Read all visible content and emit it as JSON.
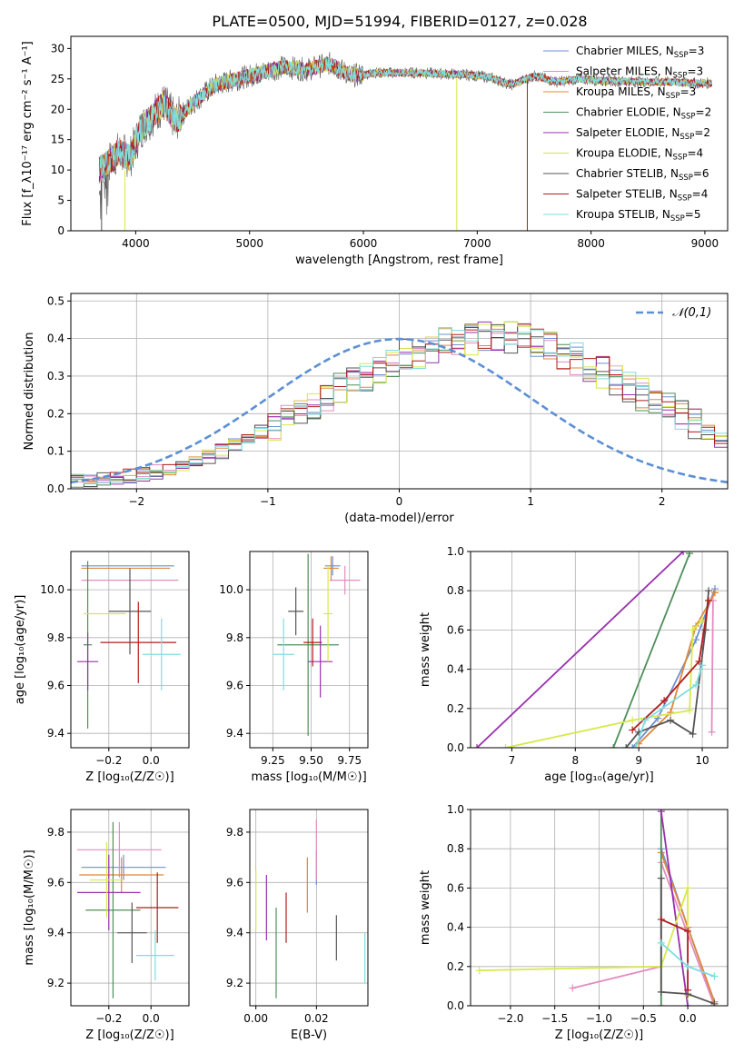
{
  "figure": {
    "title": "PLATE=0500, MJD=51994, FIBERID=0127, z=0.028"
  },
  "legend_models": [
    {
      "label": "Chabrier MILES, N",
      "sub": "SSP",
      "suffix": "=3",
      "color": "#6f8fd0"
    },
    {
      "label": "Salpeter MILES, N",
      "sub": "SSP",
      "suffix": "=3",
      "color": "#e58bc0"
    },
    {
      "label": "Kroupa MILES, N",
      "sub": "SSP",
      "suffix": "=3",
      "color": "#e0883a"
    },
    {
      "label": "Chabrier ELODIE, N",
      "sub": "SSP",
      "suffix": "=2",
      "color": "#4f8f5a"
    },
    {
      "label": "Salpeter ELODIE, N",
      "sub": "SSP",
      "suffix": "=2",
      "color": "#9a2fae"
    },
    {
      "label": "Kroupa ELODIE, N",
      "sub": "SSP",
      "suffix": "=4",
      "color": "#d8e84a"
    },
    {
      "label": "Chabrier STELIB, N",
      "sub": "SSP",
      "suffix": "=6",
      "color": "#555555"
    },
    {
      "label": "Salpeter STELIB, N",
      "sub": "SSP",
      "suffix": "=4",
      "color": "#b01d1d"
    },
    {
      "label": "Kroupa STELIB, N",
      "sub": "SSP",
      "suffix": "=5",
      "color": "#7fdde0"
    }
  ],
  "chart_data": [
    {
      "id": "spectrum",
      "type": "line",
      "xlabel": "wavelength [Angstrom, rest frame]",
      "ylabel": "Flux [f_λ10⁻¹⁷ erg cm⁻² s⁻¹ A⁻¹]",
      "xlim": [
        3430,
        9200
      ],
      "ylim": [
        0,
        32
      ],
      "xticks": [
        4000,
        5000,
        6000,
        7000,
        8000,
        9000
      ],
      "yticks": [
        0,
        5,
        10,
        15,
        20,
        25,
        30
      ],
      "continuum": {
        "x": [
          3680,
          3750,
          3850,
          3950,
          4050,
          4150,
          4250,
          4350,
          4500,
          4700,
          4900,
          5100,
          5300,
          5500,
          5700,
          5900,
          6100,
          6300,
          6500,
          6700,
          6900,
          7100,
          7300,
          7500,
          7700,
          7900,
          8100,
          8300,
          8500,
          8700,
          8900,
          9050
        ],
        "y": [
          10,
          11,
          13,
          12,
          17,
          19,
          21,
          18,
          21,
          24,
          25,
          26,
          27,
          26.5,
          27.5,
          25.5,
          26,
          26,
          26,
          25.8,
          25.7,
          25.3,
          24,
          25.5,
          24.5,
          25,
          24.7,
          24.6,
          24.5,
          24.5,
          24.3,
          24.3
        ]
      },
      "series": [
        {
          "name": "Chabrier MILES, NSSP=3"
        },
        {
          "name": "Salpeter MILES, NSSP=3"
        },
        {
          "name": "Kroupa MILES, NSSP=3"
        },
        {
          "name": "Chabrier ELODIE, NSSP=2"
        },
        {
          "name": "Salpeter ELODIE, NSSP=2"
        },
        {
          "name": "Kroupa ELODIE, NSSP=4"
        },
        {
          "name": "Chabrier STELIB, NSSP=6"
        },
        {
          "name": "Salpeter STELIB, NSSP=4"
        },
        {
          "name": "Kroupa STELIB, NSSP=5"
        }
      ]
    },
    {
      "id": "residuals",
      "type": "histogram",
      "xlabel": "(data-model)/error",
      "ylabel": "Normed distribution",
      "xlim": [
        -2.5,
        2.5
      ],
      "ylim": [
        0,
        0.52
      ],
      "xticks": [
        -2,
        -1,
        0,
        1,
        2
      ],
      "yticks": [
        0.0,
        0.1,
        0.2,
        0.3,
        0.4,
        0.5
      ],
      "grid": true,
      "bin_width": 0.1,
      "bin_start": -2.5,
      "reference": {
        "name": "𝒩(0,1)",
        "mu": 0,
        "sigma": 1
      },
      "envelope": [
        0.02,
        0.02,
        0.025,
        0.03,
        0.035,
        0.04,
        0.045,
        0.05,
        0.06,
        0.07,
        0.085,
        0.1,
        0.115,
        0.13,
        0.15,
        0.17,
        0.19,
        0.21,
        0.225,
        0.245,
        0.265,
        0.285,
        0.305,
        0.32,
        0.34,
        0.355,
        0.365,
        0.38,
        0.39,
        0.395,
        0.4,
        0.41,
        0.41,
        0.405,
        0.4,
        0.39,
        0.375,
        0.36,
        0.345,
        0.33,
        0.31,
        0.29,
        0.27,
        0.25,
        0.23,
        0.21,
        0.19,
        0.17,
        0.15,
        0.13,
        0.11,
        0.095,
        0.08,
        0.07,
        0.06,
        0.05,
        0.045,
        0.04,
        0.035,
        0.03,
        0.025,
        0.022,
        0.02,
        0.02,
        0.02,
        0.02,
        0.02,
        0.02,
        0.02,
        0.02
      ]
    },
    {
      "id": "age_vs_Z",
      "type": "errorbar",
      "xlabel": "Z [log₁₀(Z/Z☉)]",
      "ylabel": "age  [log₁₀(age/yr)]",
      "xlim": [
        -0.38,
        0.18
      ],
      "ylim": [
        9.34,
        10.16
      ],
      "xticks": [
        -0.2,
        0.0
      ],
      "yticks": [
        9.4,
        9.6,
        9.8,
        10.0
      ],
      "points": [
        {
          "x": -0.11,
          "xerr": 0.22,
          "y": 10.1,
          "yerr": 0.0
        },
        {
          "x": -0.1,
          "xerr": 0.23,
          "y": 10.04,
          "yerr": 0.0
        },
        {
          "x": -0.12,
          "xerr": 0.21,
          "y": 10.09,
          "yerr": 0.0
        },
        {
          "x": -0.3,
          "xerr": 0.02,
          "y": 9.77,
          "yerr": 0.35
        },
        {
          "x": -0.3,
          "xerr": 0.05,
          "y": 9.7,
          "yerr": 0.12
        },
        {
          "x": -0.22,
          "xerr": 0.1,
          "y": 9.9,
          "yerr": 0.0
        },
        {
          "x": -0.1,
          "xerr": 0.1,
          "y": 9.91,
          "yerr": 0.18
        },
        {
          "x": -0.06,
          "xerr": 0.18,
          "y": 9.78,
          "yerr": 0.17
        },
        {
          "x": 0.05,
          "xerr": 0.09,
          "y": 9.73,
          "yerr": 0.15
        }
      ]
    },
    {
      "id": "age_vs_mass",
      "type": "errorbar",
      "xlabel": "mass [log₁₀(M/M☉)]",
      "ylabel": "",
      "xlim": [
        9.1,
        9.87
      ],
      "ylim": [
        9.34,
        10.16
      ],
      "xticks": [
        9.25,
        9.5,
        9.75
      ],
      "yticks": [
        9.4,
        9.6,
        9.8,
        10.0
      ],
      "points": [
        {
          "x": 9.64,
          "xerr": 0.05,
          "y": 10.1,
          "yerr": 0.04
        },
        {
          "x": 9.72,
          "xerr": 0.1,
          "y": 10.04,
          "yerr": 0.06
        },
        {
          "x": 9.63,
          "xerr": 0.05,
          "y": 10.09,
          "yerr": 0.05
        },
        {
          "x": 9.48,
          "xerr": 0.2,
          "y": 9.77,
          "yerr": 0.38
        },
        {
          "x": 9.56,
          "xerr": 0.08,
          "y": 9.7,
          "yerr": 0.15
        },
        {
          "x": 9.61,
          "xerr": 0.03,
          "y": 9.9,
          "yerr": 0.2
        },
        {
          "x": 9.4,
          "xerr": 0.05,
          "y": 9.91,
          "yerr": 0.1
        },
        {
          "x": 9.51,
          "xerr": 0.06,
          "y": 9.78,
          "yerr": 0.1
        },
        {
          "x": 9.32,
          "xerr": 0.07,
          "y": 9.73,
          "yerr": 0.15
        }
      ]
    },
    {
      "id": "mass_weight_vs_age",
      "type": "line",
      "xlabel": "age  [log₁₀(age/yr)]",
      "ylabel": "mass weight",
      "xlim": [
        6.35,
        10.4
      ],
      "ylim": [
        0,
        1
      ],
      "xticks": [
        7,
        8,
        9,
        10
      ],
      "yticks": [
        0.0,
        0.2,
        0.4,
        0.6,
        0.8,
        1.0
      ],
      "series": [
        {
          "x": [
            8.9,
            9.3,
            9.9,
            10.2
          ],
          "y": [
            0.0,
            0.15,
            0.55,
            0.81
          ]
        },
        {
          "x": [
            10.15,
            10.17
          ],
          "y": [
            0.08,
            0.75
          ]
        },
        {
          "x": [
            9.0,
            9.5,
            9.9,
            10.2
          ],
          "y": [
            0.02,
            0.18,
            0.62,
            0.79
          ]
        },
        {
          "x": [
            8.6,
            9.8
          ],
          "y": [
            0.0,
            0.99
          ]
        },
        {
          "x": [
            6.45,
            9.7
          ],
          "y": [
            0.0,
            1.0
          ]
        },
        {
          "x": [
            6.9,
            8.9,
            9.8,
            9.85,
            10.0
          ],
          "y": [
            0.0,
            0.14,
            0.19,
            0.6,
            0.65
          ]
        },
        {
          "x": [
            8.8,
            9.0,
            9.5,
            9.85,
            10.05,
            10.1
          ],
          "y": [
            0.0,
            0.08,
            0.14,
            0.07,
            0.6,
            0.8
          ]
        },
        {
          "x": [
            8.9,
            9.4,
            9.95,
            10.1
          ],
          "y": [
            0.09,
            0.24,
            0.44,
            0.75
          ]
        },
        {
          "x": [
            8.95,
            9.1,
            9.9,
            10.0
          ],
          "y": [
            0.0,
            0.14,
            0.32,
            0.42
          ]
        }
      ]
    },
    {
      "id": "mass_vs_Z",
      "type": "errorbar",
      "xlabel": "Z [log₁₀(Z/Z☉)]",
      "ylabel": "mass [log₁₀(M/M☉)]",
      "xlim": [
        -0.38,
        0.18
      ],
      "ylim": [
        9.11,
        9.89
      ],
      "xticks": [
        -0.2,
        0.0
      ],
      "yticks": [
        9.2,
        9.4,
        9.6,
        9.8
      ],
      "points": [
        {
          "x": -0.13,
          "xerr": 0.2,
          "y": 9.66,
          "yerr": 0.05
        },
        {
          "x": -0.15,
          "xerr": 0.2,
          "y": 9.73,
          "yerr": 0.11
        },
        {
          "x": -0.14,
          "xerr": 0.2,
          "y": 9.63,
          "yerr": 0.07
        },
        {
          "x": -0.18,
          "xerr": 0.13,
          "y": 9.49,
          "yerr": 0.35
        },
        {
          "x": -0.2,
          "xerr": 0.15,
          "y": 9.56,
          "yerr": 0.15
        },
        {
          "x": -0.21,
          "xerr": 0.08,
          "y": 9.61,
          "yerr": 0.15
        },
        {
          "x": -0.09,
          "xerr": 0.07,
          "y": 9.4,
          "yerr": 0.12
        },
        {
          "x": 0.03,
          "xerr": 0.1,
          "y": 9.5,
          "yerr": 0.14
        },
        {
          "x": 0.02,
          "xerr": 0.09,
          "y": 9.31,
          "yerr": 0.1
        }
      ]
    },
    {
      "id": "mass_vs_EBV",
      "type": "errorbar",
      "xlabel": "E(B-V)",
      "ylabel": "",
      "xlim": [
        -0.002,
        0.037
      ],
      "ylim": [
        9.11,
        9.89
      ],
      "xticks": [
        0.0,
        0.02
      ],
      "yticks": [
        9.2,
        9.4,
        9.6,
        9.8
      ],
      "points": [
        {
          "x": 0.02,
          "xerr": 0.0,
          "y": 9.66,
          "yerr": 0.07
        },
        {
          "x": 0.02,
          "xerr": 0.0,
          "y": 9.73,
          "yerr": 0.12
        },
        {
          "x": 0.017,
          "xerr": 0.0,
          "y": 9.59,
          "yerr": 0.11
        },
        {
          "x": 0.0067,
          "xerr": 0.0,
          "y": 9.32,
          "yerr": 0.18
        },
        {
          "x": 0.0035,
          "xerr": 0.0,
          "y": 9.5,
          "yerr": 0.13
        },
        {
          "x": 0.0,
          "xerr": 0.0,
          "y": 9.53,
          "yerr": 0.12
        },
        {
          "x": 0.0266,
          "xerr": 0.0,
          "y": 9.38,
          "yerr": 0.09
        },
        {
          "x": 0.01,
          "xerr": 0.0,
          "y": 9.46,
          "yerr": 0.1
        },
        {
          "x": 0.036,
          "xerr": 0.0,
          "y": 9.3,
          "yerr": 0.1
        }
      ]
    },
    {
      "id": "mass_weight_vs_Z",
      "type": "line",
      "xlabel": "Z [log₁₀(Z/Z☉)]",
      "ylabel": "mass weight",
      "xlim": [
        -2.45,
        0.45
      ],
      "ylim": [
        0,
        1
      ],
      "xticks": [
        -2.0,
        -1.5,
        -1.0,
        -0.5,
        0.0
      ],
      "yticks": [
        0.0,
        0.2,
        0.4,
        0.6,
        0.8,
        1.0
      ],
      "series": [
        {
          "x": [
            -0.3,
            0.0,
            0.3
          ],
          "y": [
            0.8,
            0.4,
            0.02
          ]
        },
        {
          "x": [
            -1.3,
            -0.3,
            -0.3,
            0.3
          ],
          "y": [
            0.09,
            0.2,
            0.73,
            0.0
          ]
        },
        {
          "x": [
            -0.3,
            0.0,
            0.3
          ],
          "y": [
            0.78,
            0.4,
            0.02
          ]
        },
        {
          "x": [
            -0.3,
            -0.3
          ],
          "y": [
            0.0,
            1.0
          ]
        },
        {
          "x": [
            -0.3,
            0.0
          ],
          "y": [
            0.99,
            0.0
          ]
        },
        {
          "x": [
            -2.35,
            -0.3,
            0.0,
            0.0
          ],
          "y": [
            0.18,
            0.2,
            0.6,
            0.05
          ]
        },
        {
          "x": [
            -0.3,
            -0.3,
            0.0,
            0.3
          ],
          "y": [
            0.65,
            0.07,
            0.06,
            0.01
          ]
        },
        {
          "x": [
            -0.3,
            0.0,
            0.0
          ],
          "y": [
            0.44,
            0.38,
            0.08
          ]
        },
        {
          "x": [
            -0.3,
            0.0,
            0.3
          ],
          "y": [
            0.32,
            0.2,
            0.15
          ]
        }
      ]
    }
  ]
}
